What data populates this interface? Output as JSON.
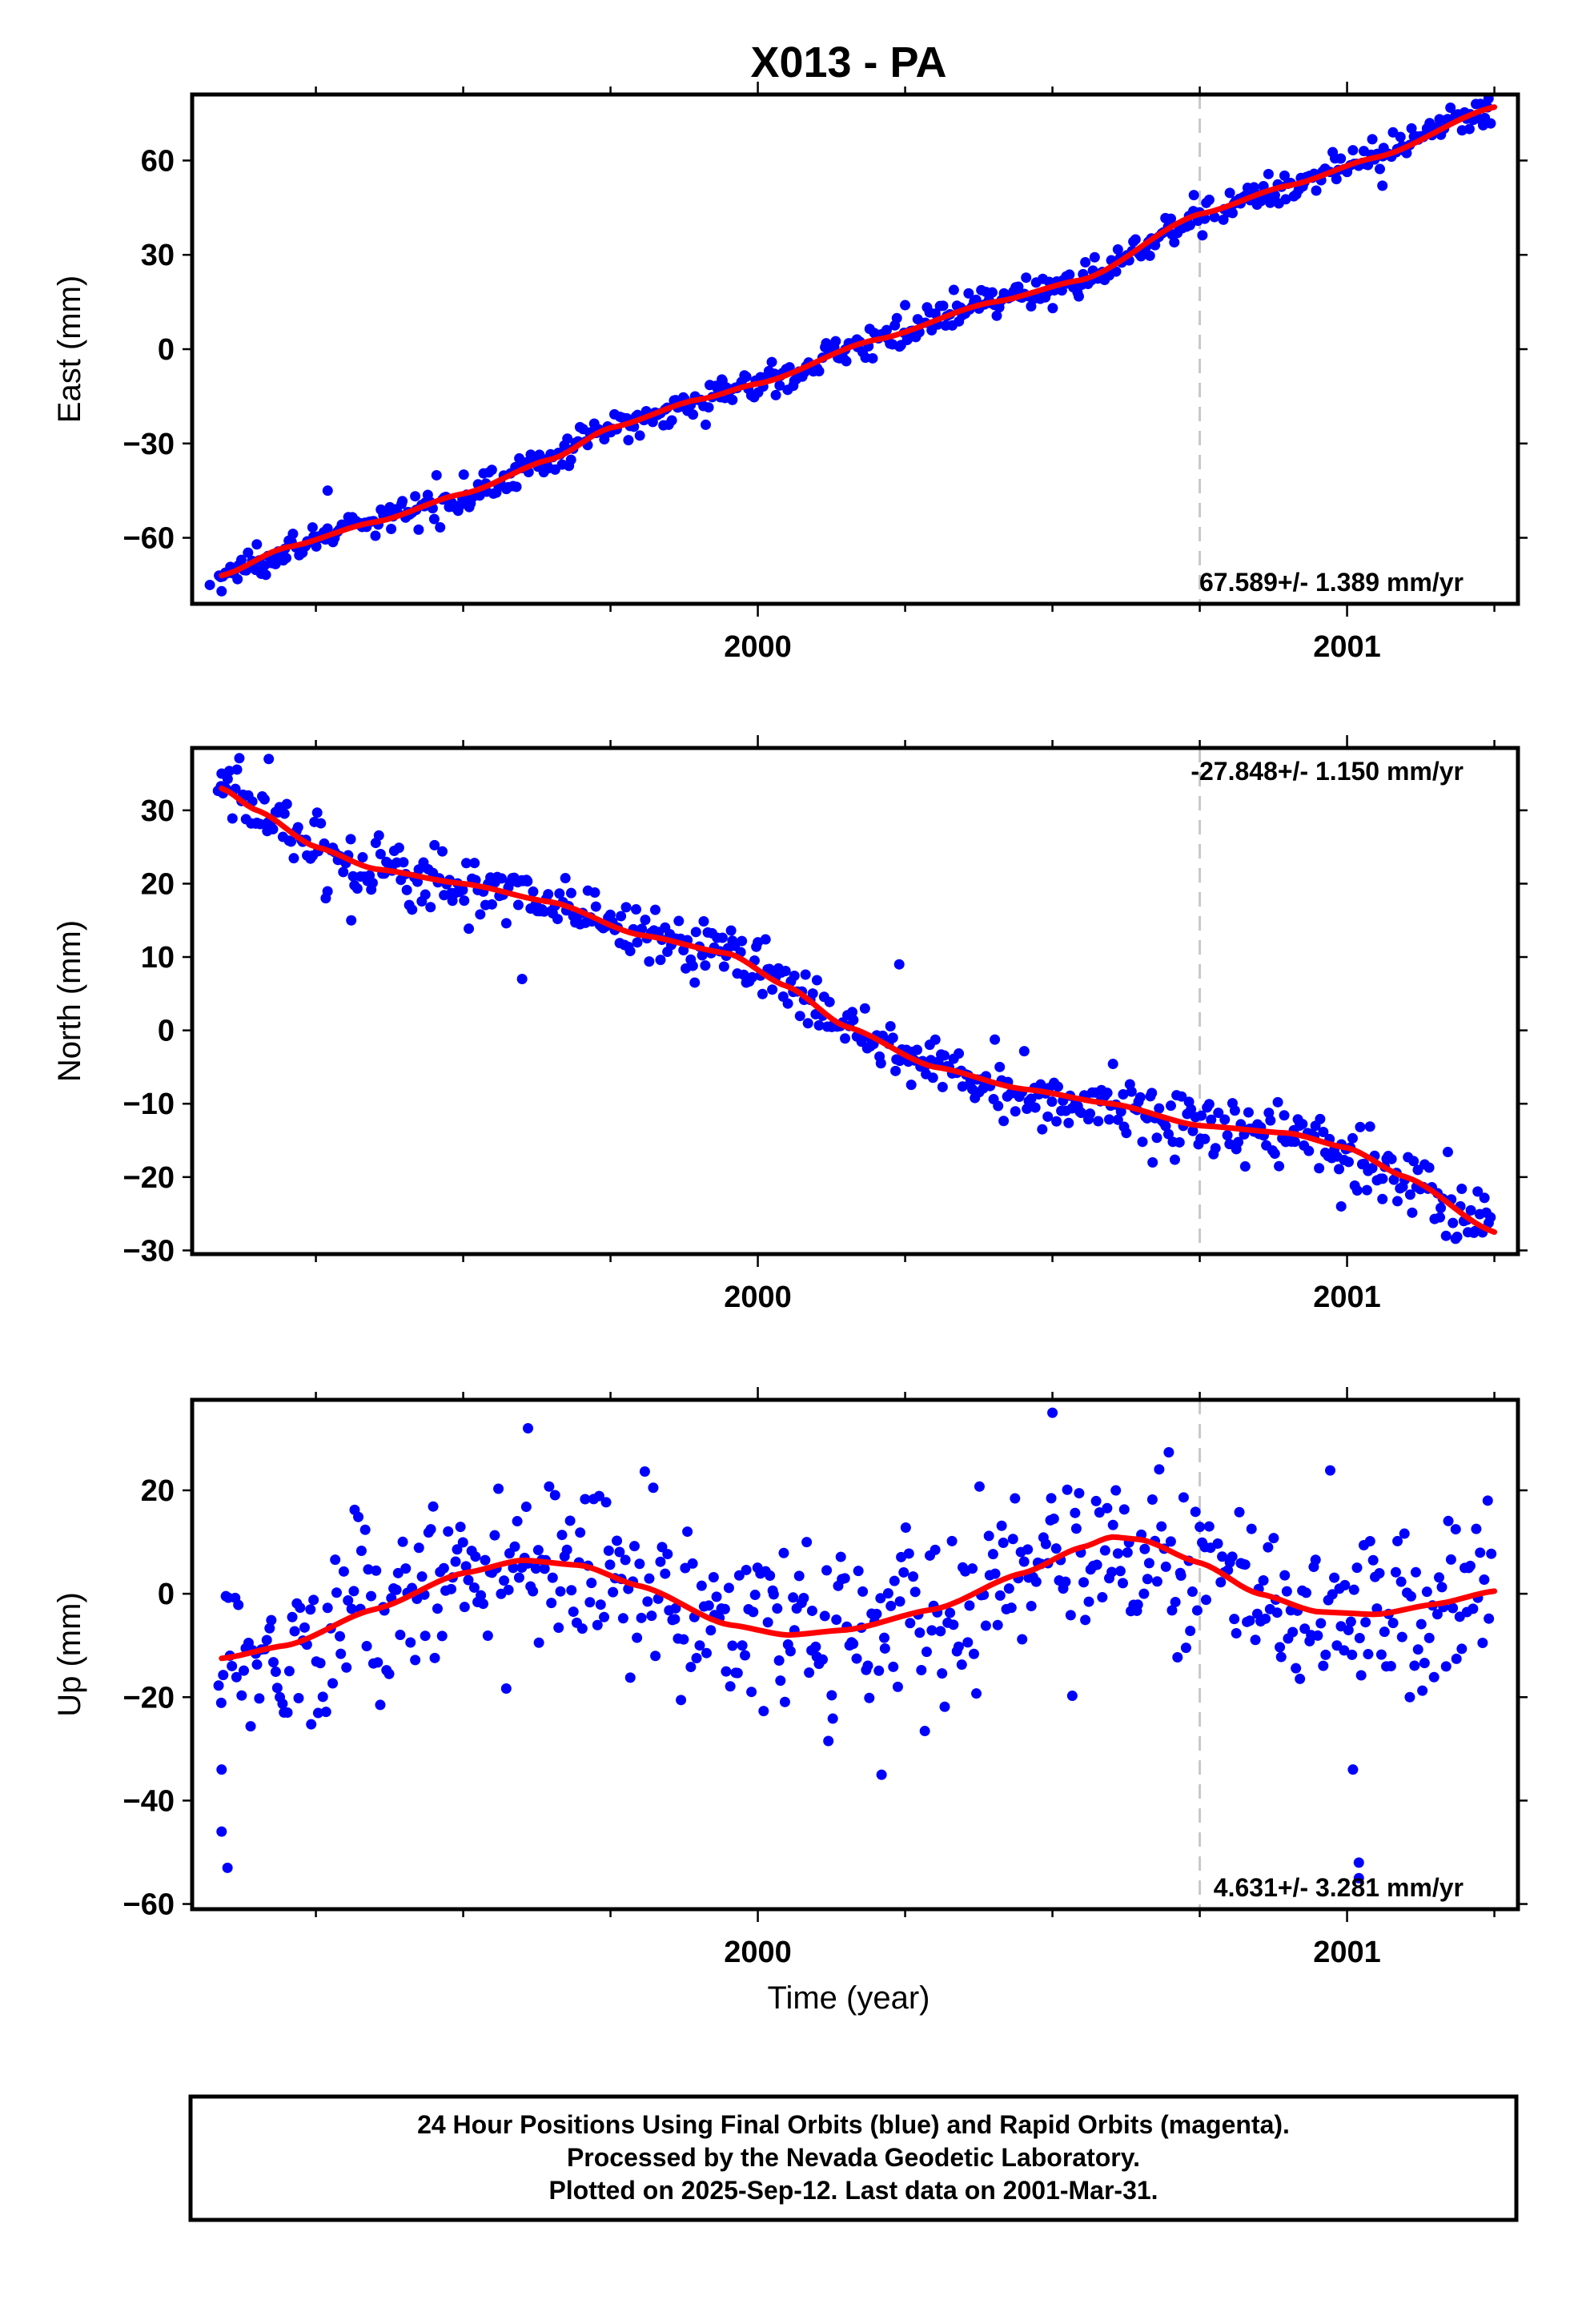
{
  "title": "X013 - PA",
  "xlabel": "Time (year)",
  "colors": {
    "final_orbits": "#0000ff",
    "fit": "#ff0000",
    "reference_line": "#c8c8c8"
  },
  "footnote": {
    "line1": "24 Hour Positions Using Final Orbits (blue) and Rapid Orbits (magenta).",
    "line2": "Processed by the Nevada Geodetic Laboratory.",
    "line3": "Plotted on 2025-Sep-12. Last data on 2001-Mar-31."
  },
  "chart_data": [
    {
      "type": "scatter",
      "component": "east",
      "ylabel": "East (mm)",
      "xlim": [
        1999.04,
        2001.29
      ],
      "ylim": [
        -81,
        81
      ],
      "yticks": [
        60,
        30,
        0,
        -30,
        -60
      ],
      "ytick_labels": [
        "60",
        "30",
        "0",
        "−30",
        "−60"
      ],
      "xticks_labeled": [
        2000,
        2001
      ],
      "xtick_labels": [
        "2000",
        "2001"
      ],
      "reference_epoch": 2000.75,
      "rate": "67.589+/- 1.389 mm/yr",
      "fit": [
        [
          1999.09,
          -72
        ],
        [
          1999.2,
          -63
        ],
        [
          1999.35,
          -55
        ],
        [
          1999.5,
          -46
        ],
        [
          1999.65,
          -35
        ],
        [
          1999.75,
          -25
        ],
        [
          1999.9,
          -16
        ],
        [
          2000.0,
          -11
        ],
        [
          2000.2,
          3
        ],
        [
          2000.4,
          15
        ],
        [
          2000.55,
          22
        ],
        [
          2000.75,
          43
        ],
        [
          2000.9,
          52
        ],
        [
          2001.05,
          61
        ],
        [
          2001.25,
          77
        ]
      ],
      "outliers": [
        [
          1999.09,
          -77
        ],
        [
          1999.07,
          -75
        ],
        [
          1999.27,
          -45
        ],
        [
          1999.94,
          -10
        ],
        [
          2000.25,
          14
        ],
        [
          2000.74,
          49
        ],
        [
          2001.06,
          52
        ]
      ]
    },
    {
      "type": "scatter",
      "component": "north",
      "ylabel": "North (mm)",
      "xlim": [
        1999.04,
        2001.29
      ],
      "ylim": [
        -30.5,
        38.5
      ],
      "yticks": [
        30,
        20,
        10,
        0,
        -10,
        -20,
        -30
      ],
      "ytick_labels": [
        "30",
        "20",
        "10",
        "0",
        "−10",
        "−20",
        "−30"
      ],
      "xticks_labeled": [
        2000,
        2001
      ],
      "xtick_labels": [
        "2000",
        "2001"
      ],
      "reference_epoch": 2000.75,
      "rate": "-27.848+/- 1.150 mm/yr",
      "fit": [
        [
          1999.09,
          33
        ],
        [
          1999.15,
          30
        ],
        [
          1999.25,
          25
        ],
        [
          1999.35,
          22
        ],
        [
          1999.5,
          20
        ],
        [
          1999.65,
          17.5
        ],
        [
          1999.8,
          13
        ],
        [
          1999.95,
          10.5
        ],
        [
          2000.05,
          6
        ],
        [
          2000.15,
          0.5
        ],
        [
          2000.3,
          -5
        ],
        [
          2000.45,
          -8
        ],
        [
          2000.6,
          -10
        ],
        [
          2000.75,
          -13
        ],
        [
          2000.9,
          -14
        ],
        [
          2001.0,
          -16
        ],
        [
          2001.1,
          -20
        ],
        [
          2001.25,
          -27.5
        ]
      ],
      "outliers": [
        [
          1999.6,
          7
        ],
        [
          1999.31,
          15
        ],
        [
          2000.24,
          9
        ],
        [
          2000.67,
          -18
        ],
        [
          2000.99,
          -24
        ],
        [
          2001.06,
          -23
        ],
        [
          1999.09,
          35
        ],
        [
          1999.17,
          37
        ]
      ]
    },
    {
      "type": "scatter",
      "component": "up",
      "ylabel": "Up (mm)",
      "xlim": [
        1999.04,
        2001.29
      ],
      "ylim": [
        -61,
        37.5
      ],
      "yticks": [
        20,
        0,
        -20,
        -40,
        -60
      ],
      "ytick_labels": [
        "20",
        "0",
        "−20",
        "−40",
        "−60"
      ],
      "xticks_labeled": [
        2000,
        2001
      ],
      "xtick_labels": [
        "2000",
        "2001"
      ],
      "reference_epoch": 2000.75,
      "rate": "4.631+/- 3.281 mm/yr",
      "fit": [
        [
          1999.09,
          -12.5
        ],
        [
          1999.2,
          -10
        ],
        [
          1999.35,
          -3
        ],
        [
          1999.5,
          4
        ],
        [
          1999.6,
          6.5
        ],
        [
          1999.7,
          5.5
        ],
        [
          1999.8,
          1.5
        ],
        [
          1999.95,
          -6
        ],
        [
          2000.05,
          -8
        ],
        [
          2000.15,
          -7
        ],
        [
          2000.3,
          -3
        ],
        [
          2000.45,
          4
        ],
        [
          2000.55,
          9
        ],
        [
          2000.6,
          11
        ],
        [
          2000.65,
          10.5
        ],
        [
          2000.75,
          6
        ],
        [
          2000.85,
          0
        ],
        [
          2000.95,
          -3.5
        ],
        [
          2001.05,
          -4
        ],
        [
          2001.15,
          -2
        ],
        [
          2001.25,
          0.5
        ]
      ],
      "outliers": [
        [
          1999.09,
          -34
        ],
        [
          1999.09,
          -46
        ],
        [
          1999.1,
          -53
        ],
        [
          1999.61,
          32
        ],
        [
          2000.5,
          35
        ],
        [
          2001.01,
          -34
        ],
        [
          2001.02,
          -55
        ],
        [
          2001.02,
          -52
        ],
        [
          2000.21,
          -35
        ]
      ]
    }
  ]
}
